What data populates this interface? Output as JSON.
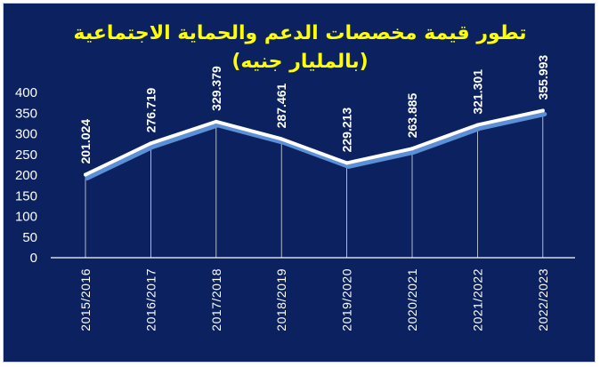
{
  "chart_data": {
    "type": "line",
    "title": "تطور قيمة مخصصات الدعم والحماية الاجتماعية",
    "subtitle": "(بالمليار جنيه)",
    "categories": [
      "2015/2016",
      "2016/2017",
      "2017/2018",
      "2018/2019",
      "2019/2020",
      "2020/2021",
      "2021/2022",
      "2022/2023"
    ],
    "values": [
      201.024,
      276.719,
      329.379,
      287.461,
      229.213,
      263.885,
      321.301,
      355.993
    ],
    "data_labels": [
      "201.024",
      "276.719",
      "329.379",
      "287.461",
      "229.213",
      "263.885",
      "321.301",
      "355.993"
    ],
    "yticks": [
      "0",
      "50",
      "100",
      "150",
      "200",
      "250",
      "300",
      "350",
      "400"
    ],
    "ylim": [
      0,
      400
    ],
    "grid": false,
    "legend": "none"
  },
  "colors": {
    "background": "#0c2260",
    "title": "#ffff00",
    "line": "#ffffff",
    "line_shadow": "#5b8fd6",
    "text": "#ffffff"
  }
}
